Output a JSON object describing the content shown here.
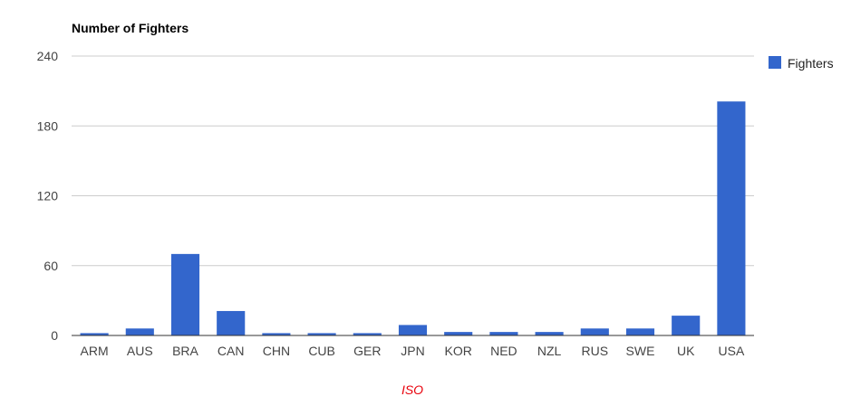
{
  "chart_data": {
    "type": "bar",
    "title": "Number of Fighters",
    "xlabel": "ISO",
    "ylabel": "",
    "categories": [
      "ARM",
      "AUS",
      "BRA",
      "CAN",
      "CHN",
      "CUB",
      "GER",
      "JPN",
      "KOR",
      "NED",
      "NZL",
      "RUS",
      "SWE",
      "UK",
      "USA"
    ],
    "series": [
      {
        "name": "Fighters",
        "values": [
          2,
          6,
          70,
          21,
          2,
          2,
          2,
          9,
          3,
          3,
          3,
          6,
          6,
          17,
          201
        ]
      }
    ],
    "ylim": [
      0,
      240
    ],
    "yticks": [
      "0",
      "60",
      "120",
      "180",
      "240"
    ],
    "grid": true,
    "legend_position": "right",
    "colors": {
      "bar": "#3366cc",
      "grid": "#cccccc",
      "axis": "#333333",
      "xlabel": "#e8000b"
    }
  }
}
